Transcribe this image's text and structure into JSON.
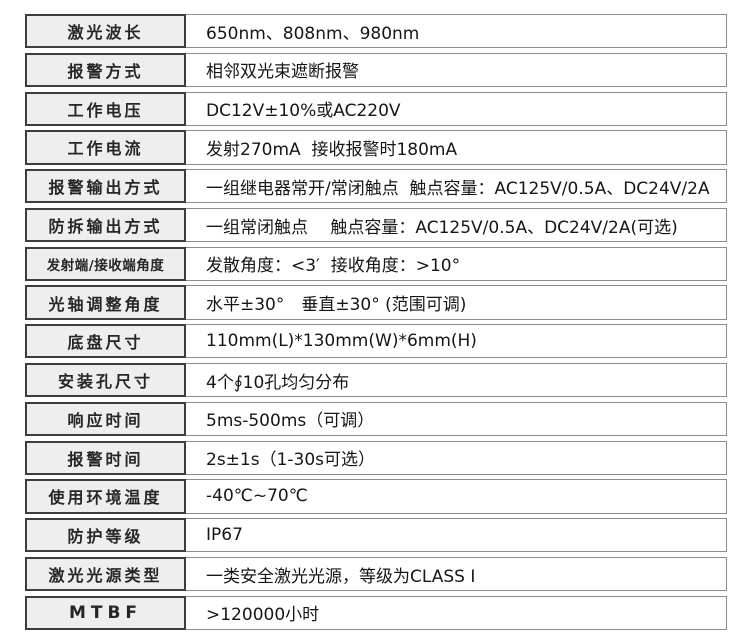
{
  "colors": {
    "label_cell_background": "#eeeeee",
    "label_cell_border": "#3d3d3d",
    "value_cell_border": "#8c8c8c",
    "text": "#161616"
  },
  "table": {
    "rows": [
      {
        "label": "激光波长",
        "value": "650nm、808nm、980nm"
      },
      {
        "label": "报警方式",
        "value": "相邻双光束遮断报警"
      },
      {
        "label": "工作电压",
        "value": "DC12V±10%或AC220V"
      },
      {
        "label": "工作电流",
        "value": "发射270mA  接收报警时180mA"
      },
      {
        "label": "报警输出方式",
        "value": "一组继电器常开/常闭触点  触点容量：AC125V/0.5A、DC24V/2A"
      },
      {
        "label": "防拆输出方式",
        "value": "一组常闭触点　 触点容量：AC125V/0.5A、DC24V/2A(可选)"
      },
      {
        "label": "发射端/接收端角度",
        "value": "发散角度：<3′  接收角度：>10°"
      },
      {
        "label": "光轴调整角度",
        "value": "水平±30°　垂直±30° (范围可调)"
      },
      {
        "label": "底盘尺寸",
        "value": "110mm(L)*130mm(W)*6mm(H)"
      },
      {
        "label": "安装孔尺寸",
        "value": "4个∮10孔均匀分布"
      },
      {
        "label": "响应时间",
        "value": "5ms-500ms（可调）"
      },
      {
        "label": "报警时间",
        "value": "2s±1s（1-30s可选）"
      },
      {
        "label": "使用环境温度",
        "value": "-40℃~70℃"
      },
      {
        "label": "防护等级",
        "value": "IP67"
      },
      {
        "label": "激光光源类型",
        "value": "一类安全激光光源，等级为CLASS Ⅰ"
      },
      {
        "label": "MTBF",
        "value": ">120000小时"
      }
    ]
  }
}
